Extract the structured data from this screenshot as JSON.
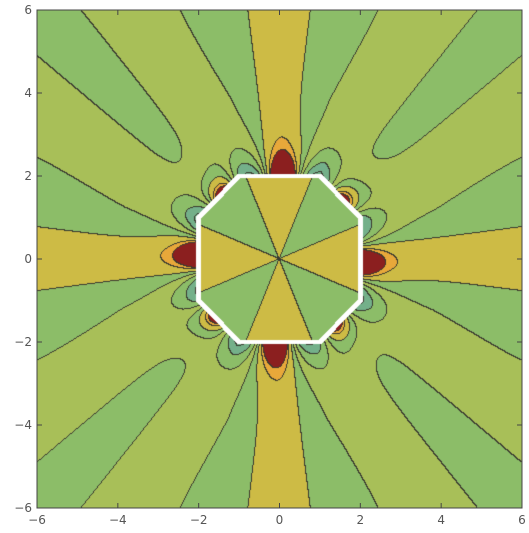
{
  "chart_data": {
    "type": "heatmap",
    "subtype": "contour",
    "title": "",
    "xlabel": "",
    "ylabel": "",
    "xlim": [
      -6,
      6
    ],
    "ylim": [
      -6,
      6
    ],
    "x_ticks": [
      -6,
      -4,
      -2,
      0,
      2,
      4,
      6
    ],
    "y_ticks": [
      -6,
      -4,
      -2,
      0,
      2,
      4,
      6
    ],
    "x_tick_labels": [
      "-6",
      "-4",
      "-2",
      "0",
      "2",
      "4",
      "6"
    ],
    "y_tick_labels": [
      "-6",
      "-4",
      "-2",
      "0",
      "2",
      "4",
      "6"
    ],
    "grid": false,
    "legend": "none",
    "contour_field": "inverse-square-potential",
    "excluded_region": "rounded square, vertices at (±1,±2) and (±2,±1)",
    "polygon_vertices": [
      [
        -2,
        -1
      ],
      [
        -1,
        -2
      ],
      [
        1,
        -2
      ],
      [
        2,
        -1
      ],
      [
        2,
        1
      ],
      [
        1,
        2
      ],
      [
        -1,
        2
      ],
      [
        -2,
        1
      ]
    ],
    "contour_levels": [
      -2,
      -1.2,
      -0.8,
      -0.3,
      0,
      0.25,
      0.45,
      0.62,
      0.8,
      0.9,
      2
    ],
    "colors": {
      "dark_red": "#8b1f1f",
      "orange": "#e8a83a",
      "olive_yellow": "#cdbb45",
      "yellow_green": "#a8bf58",
      "green": "#8cbd68",
      "teal_green": "#74b08a",
      "blue": "#4a8ec8",
      "dark_blue": "#3355b8",
      "contour_line": "#3a3a30",
      "frame": "#444444"
    },
    "palette": [
      "#8b1f1f",
      "#e8a83a",
      "#cdbb45",
      "#a8bf58",
      "#8cbd68",
      "#74b08a",
      "#4a8ec8",
      "#3355b8"
    ]
  }
}
